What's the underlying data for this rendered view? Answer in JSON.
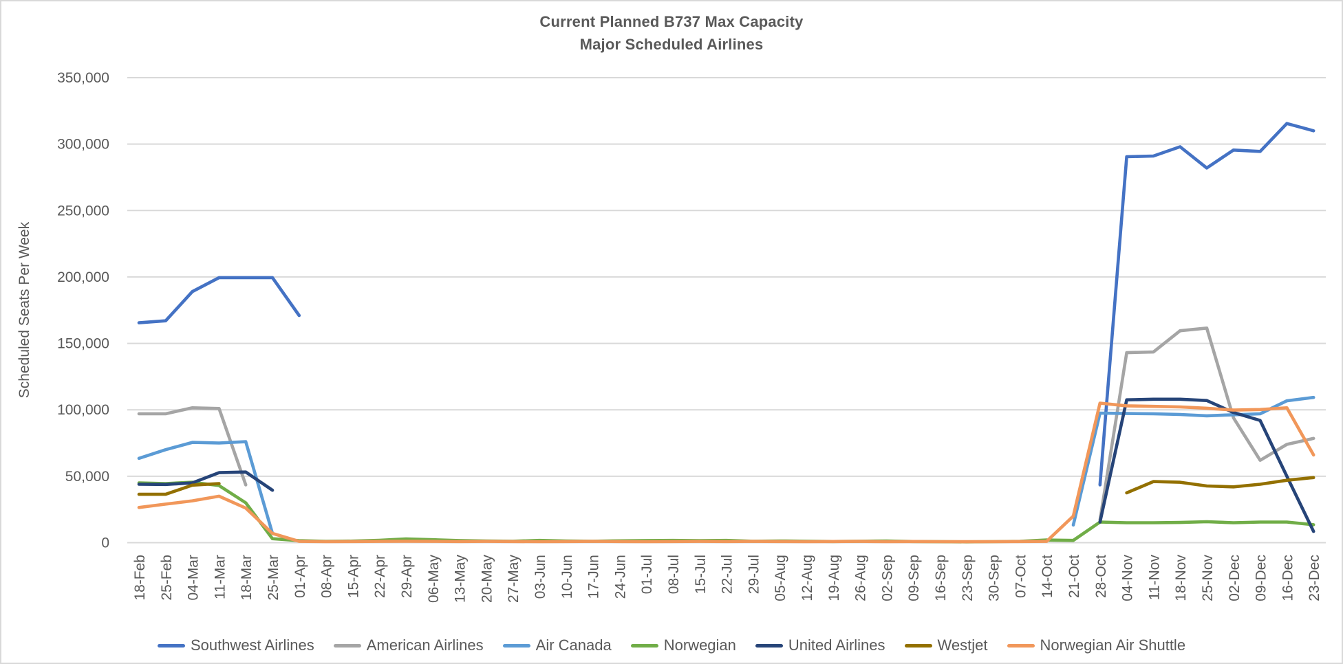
{
  "frame": {
    "background": "#FFFFFF",
    "border_color": "#D9D9D9"
  },
  "text_color": "#595959",
  "grid_color": "#D9D9D9",
  "chart_data": {
    "type": "line",
    "title": "Current Planned B737 Max Capacity",
    "subtitle": "Major Scheduled Airlines",
    "ylabel": "Scheduled Seats Per Week",
    "xlabel": "",
    "ylim": [
      0,
      350000
    ],
    "y_ticks": [
      0,
      50000,
      100000,
      150000,
      200000,
      250000,
      300000,
      350000
    ],
    "grid": "horizontal",
    "legend_position": "bottom",
    "categories": [
      "18-Feb",
      "25-Feb",
      "04-Mar",
      "11-Mar",
      "18-Mar",
      "25-Mar",
      "01-Apr",
      "08-Apr",
      "15-Apr",
      "22-Apr",
      "29-Apr",
      "06-May",
      "13-May",
      "20-May",
      "27-May",
      "03-Jun",
      "10-Jun",
      "17-Jun",
      "24-Jun",
      "01-Jul",
      "08-Jul",
      "15-Jul",
      "22-Jul",
      "29-Jul",
      "05-Aug",
      "12-Aug",
      "19-Aug",
      "26-Aug",
      "02-Sep",
      "09-Sep",
      "16-Sep",
      "23-Sep",
      "30-Sep",
      "07-Oct",
      "14-Oct",
      "21-Oct",
      "28-Oct",
      "04-Nov",
      "11-Nov",
      "18-Nov",
      "25-Nov",
      "02-Dec",
      "09-Dec",
      "16-Dec",
      "23-Dec"
    ],
    "series": [
      {
        "name": "Southwest Airlines",
        "color": "#4472C4",
        "values": [
          165500,
          167000,
          189000,
          199500,
          199500,
          199500,
          171000,
          null,
          null,
          null,
          null,
          null,
          null,
          null,
          null,
          null,
          null,
          null,
          null,
          null,
          null,
          null,
          null,
          null,
          null,
          null,
          null,
          null,
          null,
          null,
          null,
          null,
          null,
          null,
          null,
          null,
          43500,
          290500,
          291000,
          298000,
          282000,
          295500,
          294500,
          315500,
          310000
        ]
      },
      {
        "name": "American Airlines",
        "color": "#A5A5A5",
        "values": [
          97000,
          97000,
          101500,
          101000,
          43500,
          null,
          null,
          null,
          null,
          null,
          null,
          null,
          null,
          null,
          null,
          null,
          null,
          null,
          null,
          null,
          null,
          null,
          null,
          null,
          null,
          null,
          null,
          null,
          null,
          null,
          null,
          null,
          null,
          null,
          null,
          null,
          17000,
          143000,
          143500,
          159500,
          161500,
          94000,
          62000,
          74000,
          78500
        ]
      },
      {
        "name": "Air Canada",
        "color": "#5B9BD5",
        "values": [
          63500,
          70000,
          75500,
          75000,
          76000,
          7000,
          null,
          null,
          null,
          null,
          null,
          null,
          null,
          null,
          null,
          null,
          null,
          null,
          null,
          null,
          null,
          null,
          null,
          null,
          null,
          null,
          null,
          null,
          null,
          null,
          null,
          null,
          null,
          null,
          null,
          13300,
          97500,
          97200,
          97000,
          96500,
          95500,
          96300,
          97000,
          106800,
          109300
        ]
      },
      {
        "name": "Norwegian",
        "color": "#70AD47",
        "values": [
          45000,
          44500,
          45500,
          43000,
          30000,
          3000,
          1500,
          1000,
          1200,
          1800,
          2800,
          2200,
          1600,
          1300,
          1100,
          1700,
          1300,
          1100,
          1400,
          1600,
          1700,
          1500,
          1700,
          1100,
          1300,
          1100,
          900,
          1100,
          1300,
          900,
          700,
          600,
          800,
          1000,
          2000,
          1700,
          15500,
          15000,
          15000,
          15200,
          15800,
          15000,
          15500,
          15500,
          13500
        ]
      },
      {
        "name": "United Airlines",
        "color": "#264478",
        "values": [
          44000,
          43800,
          45000,
          52700,
          53200,
          39500,
          null,
          null,
          null,
          null,
          null,
          null,
          null,
          null,
          null,
          null,
          null,
          null,
          null,
          null,
          null,
          null,
          null,
          null,
          null,
          null,
          null,
          null,
          null,
          null,
          null,
          null,
          null,
          null,
          null,
          null,
          15500,
          107500,
          108000,
          108000,
          107000,
          98000,
          92000,
          50000,
          8500
        ]
      },
      {
        "name": "Westjet",
        "color": "#937000",
        "values": [
          36400,
          36400,
          43300,
          44500,
          null,
          null,
          null,
          null,
          null,
          null,
          null,
          null,
          null,
          null,
          null,
          null,
          null,
          null,
          null,
          null,
          null,
          null,
          null,
          null,
          null,
          null,
          null,
          null,
          null,
          null,
          null,
          null,
          null,
          null,
          null,
          null,
          null,
          37500,
          46000,
          45500,
          42700,
          42000,
          44000,
          47000,
          49000
        ]
      },
      {
        "name": "Norwegian Air Shuttle",
        "color": "#F1975A",
        "values": [
          26500,
          29000,
          31500,
          35000,
          26000,
          7000,
          1000,
          800,
          900,
          1000,
          1100,
          1000,
          900,
          1000,
          900,
          800,
          900,
          1000,
          900,
          800,
          900,
          1000,
          900,
          1000,
          900,
          800,
          900,
          1000,
          800,
          900,
          800,
          700,
          800,
          900,
          1000,
          20000,
          105000,
          103000,
          102600,
          102200,
          101200,
          99800,
          100200,
          101500,
          66000
        ]
      }
    ]
  }
}
